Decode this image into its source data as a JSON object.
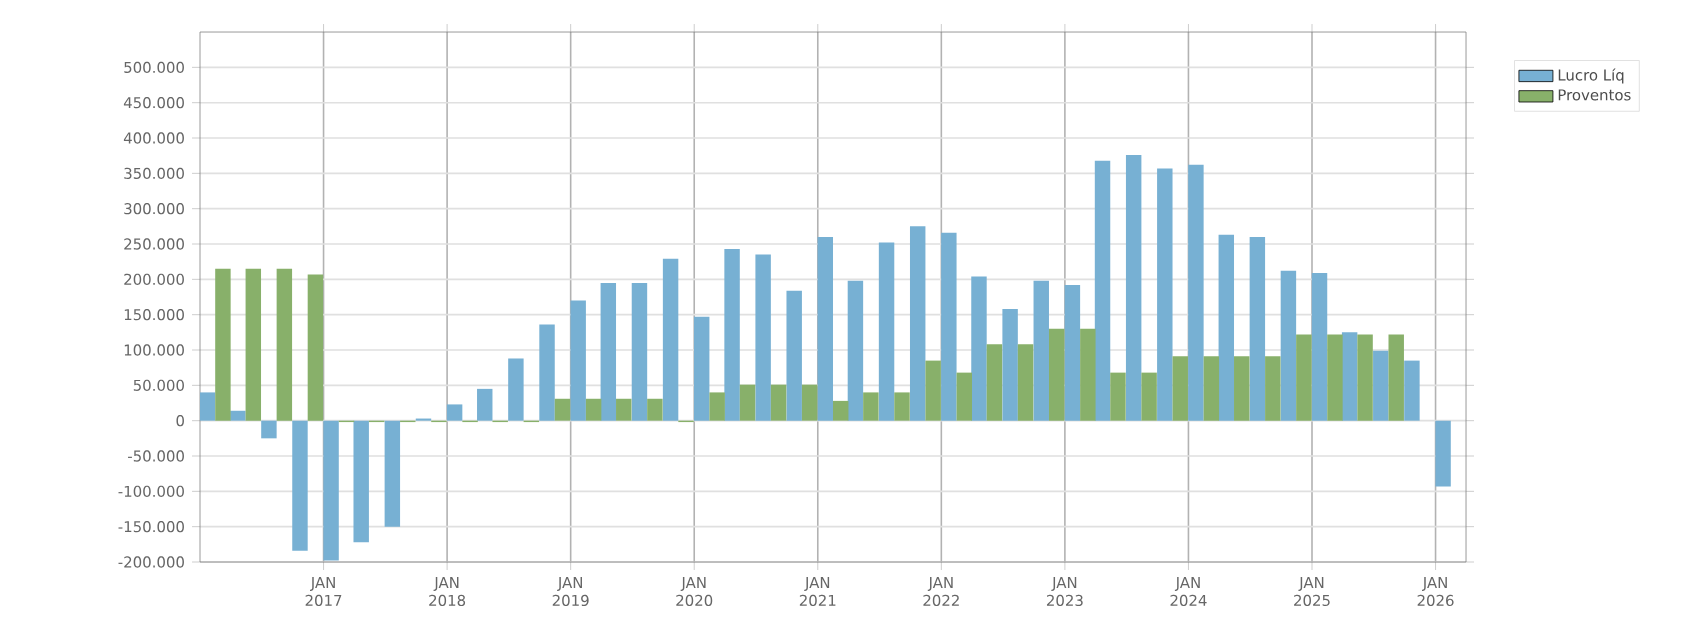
{
  "chart_data": {
    "type": "bar",
    "x": [
      "2016-02-15",
      "2016-05-15",
      "2016-08-15",
      "2016-11-15",
      "2017-02-15",
      "2017-05-15",
      "2017-08-15",
      "2017-11-15",
      "2018-02-15",
      "2018-05-15",
      "2018-08-15",
      "2018-11-15",
      "2019-02-15",
      "2019-05-15",
      "2019-08-15",
      "2019-11-15",
      "2020-02-15",
      "2020-05-15",
      "2020-08-15",
      "2020-11-15",
      "2021-02-15",
      "2021-05-15",
      "2021-08-15",
      "2021-11-15",
      "2022-02-15",
      "2022-05-15",
      "2022-08-15",
      "2022-11-15",
      "2023-02-15",
      "2023-05-15",
      "2023-08-15",
      "2023-11-15",
      "2024-02-15",
      "2024-05-15",
      "2024-08-15",
      "2024-11-15",
      "2025-02-15",
      "2025-05-15",
      "2025-08-15",
      "2025-11-15",
      "2026-02-15"
    ],
    "series": [
      {
        "name": "Lucro Líq",
        "color": "#77b0d3",
        "values": [
          40000,
          14000,
          -25000,
          -184000,
          -198000,
          -172000,
          -150000,
          3000,
          23000,
          45000,
          88000,
          136000,
          170000,
          195000,
          195000,
          229000,
          147000,
          243000,
          235000,
          184000,
          260000,
          198000,
          252000,
          275000,
          266000,
          204000,
          158000,
          198000,
          192000,
          368000,
          376000,
          357000,
          362000,
          263000,
          260000,
          212000,
          209000,
          125000,
          99000,
          85000,
          -93000
        ]
      },
      {
        "name": "Proventos",
        "color": "#88b06a",
        "values": [
          215000,
          215000,
          215000,
          207000,
          -2000,
          -2000,
          -2000,
          -2000,
          -2000,
          -2000,
          -2000,
          31000,
          31000,
          31000,
          31000,
          -2000,
          40000,
          51000,
          51000,
          51000,
          28000,
          40000,
          40000,
          85000,
          68000,
          108000,
          108000,
          130000,
          130000,
          68000,
          68000,
          91000,
          91000,
          91000,
          91000,
          122000,
          122000,
          122000,
          122000,
          null,
          null
        ]
      }
    ],
    "xlim": [
      "2016-01-01",
      "2026-04-01"
    ],
    "xticks": [
      {
        "value": "2017-01-01",
        "label": "JAN 2017"
      },
      {
        "value": "2018-01-01",
        "label": "JAN 2018"
      },
      {
        "value": "2019-01-01",
        "label": "JAN 2019"
      },
      {
        "value": "2020-01-01",
        "label": "JAN 2020"
      },
      {
        "value": "2021-01-01",
        "label": "JAN 2021"
      },
      {
        "value": "2022-01-01",
        "label": "JAN 2022"
      },
      {
        "value": "2023-01-01",
        "label": "JAN 2023"
      },
      {
        "value": "2024-01-01",
        "label": "JAN 2024"
      },
      {
        "value": "2025-01-01",
        "label": "JAN 2025"
      },
      {
        "value": "2026-01-01",
        "label": "JAN 2026"
      }
    ],
    "ylim": [
      -200000,
      550000
    ],
    "yticks": [
      {
        "value": -200000,
        "label": "-200.000"
      },
      {
        "value": -150000,
        "label": "-150.000"
      },
      {
        "value": -100000,
        "label": "-100.000"
      },
      {
        "value": -50000,
        "label": "-50.000"
      },
      {
        "value": 0,
        "label": "0"
      },
      {
        "value": 50000,
        "label": "50.000"
      },
      {
        "value": 100000,
        "label": "100.000"
      },
      {
        "value": 150000,
        "label": "150.000"
      },
      {
        "value": 200000,
        "label": "200.000"
      },
      {
        "value": 250000,
        "label": "250.000"
      },
      {
        "value": 300000,
        "label": "300.000"
      },
      {
        "value": 350000,
        "label": "350.000"
      },
      {
        "value": 400000,
        "label": "400.000"
      },
      {
        "value": 450000,
        "label": "450.000"
      },
      {
        "value": 500000,
        "label": "500.000"
      }
    ],
    "grid": true,
    "legend": "top right"
  }
}
